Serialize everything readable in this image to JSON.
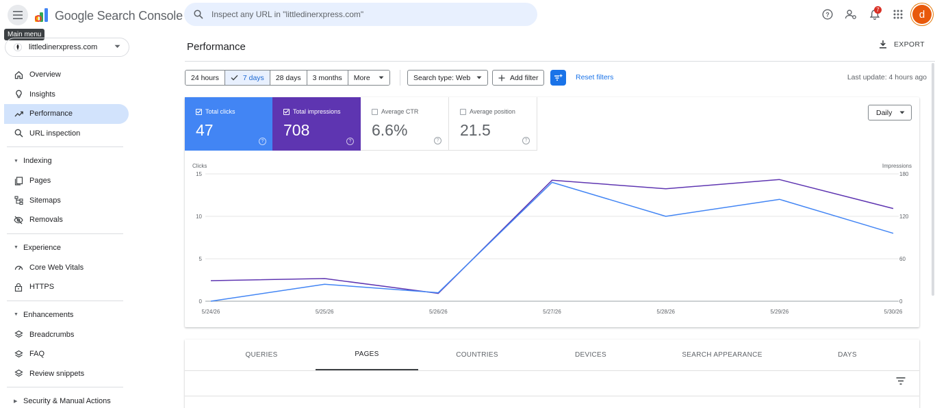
{
  "header": {
    "menu_tooltip": "Main menu",
    "brand": "Google Search Console",
    "search_placeholder": "Inspect any URL in \"littledinerxpress.com\"",
    "notification_count": "7",
    "avatar_letter": "d",
    "icons": [
      "menu-icon",
      "help-icon",
      "manage-users-icon",
      "bell-icon",
      "apps-icon"
    ]
  },
  "sidebar": {
    "property": "littledinerxpress.com",
    "items": [
      {
        "label": "Overview",
        "icon": "home-icon"
      },
      {
        "label": "Insights",
        "icon": "bulb-icon"
      },
      {
        "label": "Performance",
        "icon": "trend-icon",
        "active": true
      },
      {
        "label": "URL inspection",
        "icon": "search-icon"
      }
    ],
    "sections": [
      {
        "label": "Indexing",
        "items": [
          {
            "label": "Pages",
            "icon": "pages-icon"
          },
          {
            "label": "Sitemaps",
            "icon": "sitemap-icon"
          },
          {
            "label": "Removals",
            "icon": "eye-off-icon"
          }
        ]
      },
      {
        "label": "Experience",
        "items": [
          {
            "label": "Core Web Vitals",
            "icon": "gauge-icon"
          },
          {
            "label": "HTTPS",
            "icon": "lock-icon"
          }
        ]
      },
      {
        "label": "Enhancements",
        "items": [
          {
            "label": "Breadcrumbs",
            "icon": "layers-icon"
          },
          {
            "label": "FAQ",
            "icon": "layers-icon"
          },
          {
            "label": "Review snippets",
            "icon": "layers-icon"
          }
        ]
      }
    ],
    "security": "Security & Manual Actions"
  },
  "main": {
    "title": "Performance",
    "export": "EXPORT",
    "ranges": [
      "24 hours",
      "7 days",
      "28 days",
      "3 months",
      "More"
    ],
    "selected_range": "7 days",
    "search_type": "Search type: Web",
    "add_filter": "Add filter",
    "reset_filters": "Reset filters",
    "last_update": "Last update: 4 hours ago",
    "metrics": {
      "clicks": {
        "label": "Total clicks",
        "value": "47",
        "checked": true,
        "color": "#4285f4"
      },
      "impressions": {
        "label": "Total impressions",
        "value": "708",
        "checked": true,
        "color": "#5e35b1"
      },
      "ctr": {
        "label": "Average CTR",
        "value": "6.6%",
        "checked": false
      },
      "position": {
        "label": "Average position",
        "value": "21.5",
        "checked": false
      }
    },
    "granularity": "Daily",
    "tabs": [
      "QUERIES",
      "PAGES",
      "COUNTRIES",
      "DEVICES",
      "SEARCH APPEARANCE",
      "DAYS"
    ],
    "active_tab": "PAGES"
  },
  "chart_data": {
    "type": "line",
    "x": [
      "5/24/26",
      "5/25/26",
      "5/26/26",
      "5/27/26",
      "5/28/26",
      "5/29/26",
      "5/30/26"
    ],
    "series": [
      {
        "name": "Clicks",
        "values": [
          0,
          2,
          1,
          14,
          10,
          12,
          8
        ],
        "color": "#4285f4",
        "axis": "left"
      },
      {
        "name": "Impressions",
        "values": [
          29,
          32,
          11,
          171,
          159,
          172,
          131
        ],
        "color": "#5e35b1",
        "axis": "right"
      }
    ],
    "ylabel_left": "Clicks",
    "ylabel_right": "Impressions",
    "left_ticks": [
      0,
      5,
      10,
      15
    ],
    "right_ticks": [
      0,
      60,
      120,
      180
    ],
    "ylim_left": [
      0,
      15
    ],
    "ylim_right": [
      0,
      180
    ],
    "grid": true
  }
}
